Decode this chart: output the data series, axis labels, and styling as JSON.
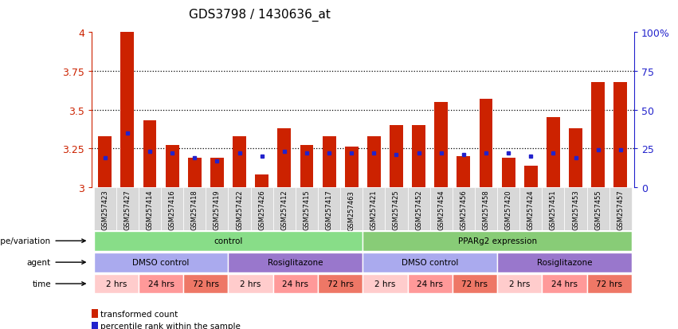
{
  "title": "GDS3798 / 1430636_at",
  "samples": [
    "GSM257423",
    "GSM257427",
    "GSM257414",
    "GSM257416",
    "GSM257418",
    "GSM257419",
    "GSM257422",
    "GSM257426",
    "GSM257412",
    "GSM257415",
    "GSM257417",
    "GSM257463",
    "GSM257421",
    "GSM257425",
    "GSM257452",
    "GSM257454",
    "GSM257456",
    "GSM257458",
    "GSM257420",
    "GSM257424",
    "GSM257451",
    "GSM257453",
    "GSM257455",
    "GSM257457"
  ],
  "red_values": [
    3.33,
    4.0,
    3.43,
    3.27,
    3.19,
    3.19,
    3.33,
    3.08,
    3.38,
    3.27,
    3.33,
    3.26,
    3.33,
    3.4,
    3.4,
    3.55,
    3.2,
    3.57,
    3.19,
    3.14,
    3.45,
    3.38,
    3.68,
    3.68
  ],
  "blue_values": [
    3.19,
    3.35,
    3.23,
    3.22,
    3.19,
    3.17,
    3.22,
    3.2,
    3.23,
    3.22,
    3.22,
    3.22,
    3.22,
    3.21,
    3.22,
    3.22,
    3.21,
    3.22,
    3.22,
    3.2,
    3.22,
    3.19,
    3.24,
    3.24
  ],
  "y_min": 3.0,
  "y_max": 4.0,
  "y_ticks": [
    3.0,
    3.25,
    3.5,
    3.75,
    4.0
  ],
  "y_tick_labels": [
    "3",
    "3.25",
    "3.5",
    "3.75",
    "4"
  ],
  "right_y_ticks_pct": [
    0,
    25,
    50,
    75,
    100
  ],
  "right_y_tick_labels": [
    "0",
    "25",
    "50",
    "75",
    "100%"
  ],
  "bar_color": "#CC2200",
  "blue_color": "#2222CC",
  "sample_bg_color": "#D8D8D8",
  "genotype_groups": [
    {
      "text": "control",
      "start": 0,
      "end": 11,
      "color": "#88DD88"
    },
    {
      "text": "PPARg2 expression",
      "start": 12,
      "end": 23,
      "color": "#88CC77"
    }
  ],
  "agent_groups": [
    {
      "text": "DMSO control",
      "start": 0,
      "end": 5,
      "color": "#AAAAEE"
    },
    {
      "text": "Rosiglitazone",
      "start": 6,
      "end": 11,
      "color": "#9977CC"
    },
    {
      "text": "DMSO control",
      "start": 12,
      "end": 17,
      "color": "#AAAAEE"
    },
    {
      "text": "Rosiglitazone",
      "start": 18,
      "end": 23,
      "color": "#9977CC"
    }
  ],
  "time_groups": [
    {
      "text": "2 hrs",
      "start": 0,
      "end": 1,
      "color": "#FFCCCC"
    },
    {
      "text": "24 hrs",
      "start": 2,
      "end": 3,
      "color": "#FF9999"
    },
    {
      "text": "72 hrs",
      "start": 4,
      "end": 5,
      "color": "#EE7766"
    },
    {
      "text": "2 hrs",
      "start": 6,
      "end": 7,
      "color": "#FFCCCC"
    },
    {
      "text": "24 hrs",
      "start": 8,
      "end": 9,
      "color": "#FF9999"
    },
    {
      "text": "72 hrs",
      "start": 10,
      "end": 11,
      "color": "#EE7766"
    },
    {
      "text": "2 hrs",
      "start": 12,
      "end": 13,
      "color": "#FFCCCC"
    },
    {
      "text": "24 hrs",
      "start": 14,
      "end": 15,
      "color": "#FF9999"
    },
    {
      "text": "72 hrs",
      "start": 16,
      "end": 17,
      "color": "#EE7766"
    },
    {
      "text": "2 hrs",
      "start": 18,
      "end": 19,
      "color": "#FFCCCC"
    },
    {
      "text": "24 hrs",
      "start": 20,
      "end": 21,
      "color": "#FF9999"
    },
    {
      "text": "72 hrs",
      "start": 22,
      "end": 23,
      "color": "#EE7766"
    }
  ],
  "row_labels": [
    "genotype/variation",
    "agent",
    "time"
  ],
  "legend_items": [
    {
      "label": "transformed count",
      "color": "#CC2200"
    },
    {
      "label": "percentile rank within the sample",
      "color": "#2222CC"
    }
  ]
}
